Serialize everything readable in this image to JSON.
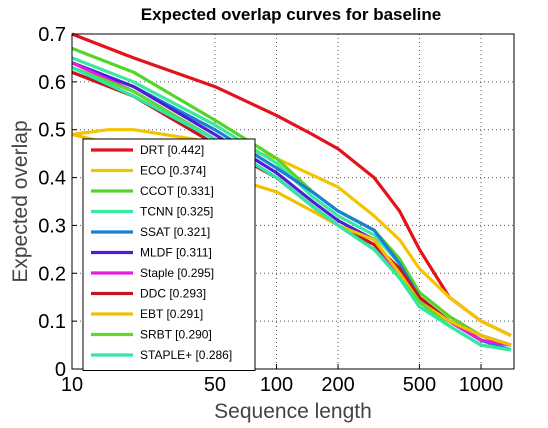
{
  "chart_data": {
    "type": "line",
    "title": "Expected overlap curves for baseline",
    "xlabel": "Sequence length",
    "ylabel": "Expected overlap",
    "x_scale": "log",
    "xlim": [
      10,
      1450
    ],
    "ylim": [
      0,
      0.7
    ],
    "x_ticks": [
      10,
      50,
      100,
      200,
      500,
      1000
    ],
    "y_ticks": [
      0,
      0.1,
      0.2,
      0.3,
      0.4,
      0.5,
      0.6,
      0.7
    ],
    "grid": true,
    "legend_position": "lower-left",
    "series": [
      {
        "name": "DRT [0.442]",
        "color": "#e3121b",
        "points": [
          [
            10,
            0.7
          ],
          [
            20,
            0.65
          ],
          [
            50,
            0.59
          ],
          [
            100,
            0.53
          ],
          [
            150,
            0.49
          ],
          [
            200,
            0.46
          ],
          [
            300,
            0.4
          ],
          [
            400,
            0.33
          ],
          [
            500,
            0.25
          ],
          [
            700,
            0.15
          ],
          [
            1000,
            0.1
          ],
          [
            1400,
            0.07
          ]
        ]
      },
      {
        "name": "ECO [0.374]",
        "color": "#f5c400",
        "points": [
          [
            10,
            0.49
          ],
          [
            15,
            0.5
          ],
          [
            20,
            0.5
          ],
          [
            40,
            0.48
          ],
          [
            70,
            0.46
          ],
          [
            100,
            0.44
          ],
          [
            200,
            0.38
          ],
          [
            300,
            0.32
          ],
          [
            400,
            0.27
          ],
          [
            500,
            0.21
          ],
          [
            700,
            0.15
          ],
          [
            1000,
            0.1
          ],
          [
            1400,
            0.07
          ]
        ]
      },
      {
        "name": "CCOT [0.331]",
        "color": "#55d52a",
        "points": [
          [
            10,
            0.67
          ],
          [
            20,
            0.62
          ],
          [
            50,
            0.52
          ],
          [
            100,
            0.44
          ],
          [
            150,
            0.37
          ],
          [
            200,
            0.33
          ],
          [
            300,
            0.29
          ],
          [
            400,
            0.23
          ],
          [
            500,
            0.16
          ],
          [
            700,
            0.11
          ],
          [
            1000,
            0.07
          ],
          [
            1400,
            0.05
          ]
        ]
      },
      {
        "name": "TCNN [0.325]",
        "color": "#3ae8a0",
        "points": [
          [
            10,
            0.65
          ],
          [
            20,
            0.6
          ],
          [
            50,
            0.51
          ],
          [
            100,
            0.43
          ],
          [
            150,
            0.36
          ],
          [
            200,
            0.32
          ],
          [
            300,
            0.28
          ],
          [
            400,
            0.22
          ],
          [
            500,
            0.15
          ],
          [
            700,
            0.1
          ],
          [
            1000,
            0.07
          ],
          [
            1400,
            0.05
          ]
        ]
      },
      {
        "name": "SSAT [0.321]",
        "color": "#1a7fd6",
        "points": [
          [
            10,
            0.64
          ],
          [
            20,
            0.59
          ],
          [
            50,
            0.5
          ],
          [
            100,
            0.42
          ],
          [
            150,
            0.37
          ],
          [
            200,
            0.33
          ],
          [
            300,
            0.29
          ],
          [
            400,
            0.22
          ],
          [
            500,
            0.15
          ],
          [
            700,
            0.1
          ],
          [
            1000,
            0.06
          ],
          [
            1400,
            0.04
          ]
        ]
      },
      {
        "name": "MLDF [0.311]",
        "color": "#4b1fd8",
        "points": [
          [
            10,
            0.64
          ],
          [
            20,
            0.59
          ],
          [
            50,
            0.49
          ],
          [
            100,
            0.41
          ],
          [
            150,
            0.35
          ],
          [
            200,
            0.31
          ],
          [
            300,
            0.27
          ],
          [
            400,
            0.2
          ],
          [
            500,
            0.14
          ],
          [
            700,
            0.1
          ],
          [
            1000,
            0.06
          ],
          [
            1400,
            0.05
          ]
        ]
      },
      {
        "name": "Staple [0.295]",
        "color": "#e21de2",
        "points": [
          [
            10,
            0.64
          ],
          [
            20,
            0.58
          ],
          [
            50,
            0.48
          ],
          [
            100,
            0.4
          ],
          [
            150,
            0.34
          ],
          [
            200,
            0.3
          ],
          [
            300,
            0.26
          ],
          [
            400,
            0.2
          ],
          [
            500,
            0.14
          ],
          [
            700,
            0.1
          ],
          [
            1000,
            0.06
          ],
          [
            1400,
            0.05
          ]
        ]
      },
      {
        "name": "DDC [0.293]",
        "color": "#c8141e",
        "points": [
          [
            10,
            0.62
          ],
          [
            20,
            0.57
          ],
          [
            50,
            0.47
          ],
          [
            100,
            0.4
          ],
          [
            150,
            0.34
          ],
          [
            200,
            0.3
          ],
          [
            300,
            0.26
          ],
          [
            400,
            0.21
          ],
          [
            500,
            0.15
          ],
          [
            700,
            0.1
          ],
          [
            1000,
            0.07
          ],
          [
            1400,
            0.05
          ]
        ]
      },
      {
        "name": "EBT [0.291]",
        "color": "#f0c000",
        "points": [
          [
            10,
            0.49
          ],
          [
            20,
            0.46
          ],
          [
            50,
            0.41
          ],
          [
            100,
            0.37
          ],
          [
            150,
            0.33
          ],
          [
            200,
            0.3
          ],
          [
            300,
            0.27
          ],
          [
            400,
            0.2
          ],
          [
            500,
            0.14
          ],
          [
            700,
            0.1
          ],
          [
            1000,
            0.07
          ],
          [
            1400,
            0.05
          ]
        ]
      },
      {
        "name": "SRBT [0.290]",
        "color": "#5ed92c",
        "points": [
          [
            10,
            0.63
          ],
          [
            20,
            0.58
          ],
          [
            50,
            0.48
          ],
          [
            100,
            0.4
          ],
          [
            150,
            0.34
          ],
          [
            200,
            0.3
          ],
          [
            300,
            0.25
          ],
          [
            400,
            0.19
          ],
          [
            500,
            0.14
          ],
          [
            700,
            0.09
          ],
          [
            1000,
            0.05
          ],
          [
            1400,
            0.04
          ]
        ]
      },
      {
        "name": "STAPLE+ [0.286]",
        "color": "#2ee8a6",
        "points": [
          [
            10,
            0.63
          ],
          [
            20,
            0.57
          ],
          [
            50,
            0.48
          ],
          [
            100,
            0.4
          ],
          [
            150,
            0.34
          ],
          [
            200,
            0.3
          ],
          [
            300,
            0.25
          ],
          [
            400,
            0.19
          ],
          [
            500,
            0.13
          ],
          [
            700,
            0.09
          ],
          [
            1000,
            0.05
          ],
          [
            1400,
            0.04
          ]
        ]
      }
    ]
  }
}
